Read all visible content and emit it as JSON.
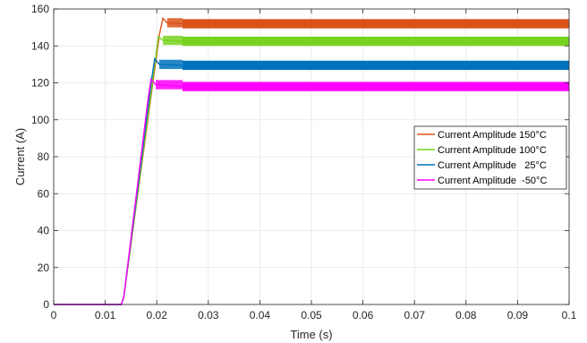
{
  "chart_data": {
    "type": "line",
    "title": "",
    "xlabel": "Time (s)",
    "ylabel": "Current (A)",
    "xlim": [
      0,
      0.1
    ],
    "ylim": [
      0,
      160
    ],
    "xticks": [
      0,
      0.01,
      0.02,
      0.03,
      0.04,
      0.05,
      0.06,
      0.07,
      0.08,
      0.09,
      0.1
    ],
    "xtick_labels": [
      "0",
      "0.01",
      "0.02",
      "0.03",
      "0.04",
      "0.05",
      "0.06",
      "0.07",
      "0.08",
      "0.09",
      "0.1"
    ],
    "yticks": [
      0,
      20,
      40,
      60,
      80,
      100,
      120,
      140,
      160
    ],
    "ytick_labels": [
      "0",
      "20",
      "40",
      "60",
      "80",
      "100",
      "120",
      "140",
      "160"
    ],
    "grid": true,
    "legend_position": "right",
    "series": [
      {
        "name": "Current Amplitude 150°C",
        "color": "#D95319",
        "x": [
          0,
          0.0131,
          0.0136,
          0.0205,
          0.0212,
          0.022,
          0.025,
          0.1
        ],
        "y": [
          0,
          0,
          4,
          146,
          155,
          152.5,
          152,
          152
        ],
        "band": 2.5
      },
      {
        "name": "Current Amplitude 100°C",
        "color": "#77D31F",
        "x": [
          0,
          0.0131,
          0.0136,
          0.0198,
          0.0203,
          0.0212,
          0.025,
          0.1
        ],
        "y": [
          0,
          0,
          4,
          134,
          145,
          143,
          142.5,
          142.5
        ],
        "band": 2.5
      },
      {
        "name": "Current Amplitude   25°C",
        "color": "#0072BD",
        "x": [
          0,
          0.0131,
          0.0136,
          0.019,
          0.0196,
          0.0205,
          0.025,
          0.1
        ],
        "y": [
          0,
          0,
          4,
          122,
          133,
          130,
          129.5,
          129.5
        ],
        "band": 2.5
      },
      {
        "name": "Current Amplitude  -50°C",
        "color": "#FF00FF",
        "x": [
          0,
          0.0131,
          0.0136,
          0.0183,
          0.0189,
          0.0198,
          0.025,
          0.1
        ],
        "y": [
          0,
          0,
          4,
          111,
          122,
          119,
          118,
          118
        ],
        "band": 2.5
      }
    ]
  }
}
